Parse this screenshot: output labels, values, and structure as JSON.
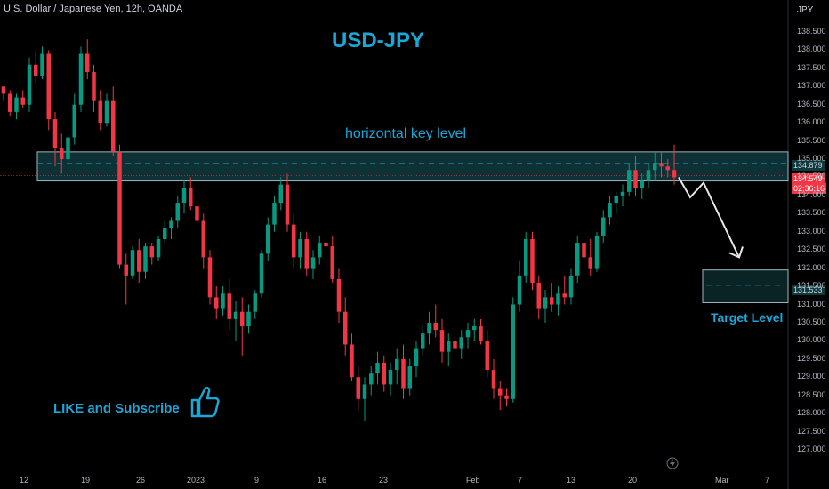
{
  "header": "U.S. Dollar / Japanese Yen, 12h, OANDA",
  "annotations": {
    "title": "USD-JPY",
    "key_level_label": "horizontal key level",
    "target_label": "Target Level",
    "cta": "LIKE and Subscribe"
  },
  "axis": {
    "unit": "JPY",
    "price_ticks": [
      "138.500",
      "138.000",
      "137.500",
      "137.000",
      "136.500",
      "136.000",
      "135.500",
      "135.000",
      "134.500",
      "134.000",
      "133.500",
      "133.000",
      "132.500",
      "132.000",
      "131.500",
      "131.000",
      "130.500",
      "130.000",
      "129.500",
      "129.000",
      "128.500",
      "128.000",
      "127.500",
      "127.000"
    ],
    "date_ticks": [
      "12",
      "19",
      "26",
      "2023",
      "9",
      "16",
      "23",
      "Feb",
      "7",
      "13",
      "20",
      "Mar",
      "7"
    ]
  },
  "tags": {
    "key_level": "134.879",
    "last_price": "134.549",
    "countdown": "02:36:16",
    "target": "131.533"
  },
  "colors": {
    "up": "#089981",
    "down": "#f23645",
    "accent": "#1ba7d8",
    "zone": "#0f3a3d"
  },
  "chart_data": {
    "type": "candlestick",
    "title": "USD-JPY",
    "symbol": "U.S. Dollar / Japanese Yen, 12h, OANDA",
    "ylim": [
      126.8,
      138.9
    ],
    "key_zone": [
      134.4,
      135.2
    ],
    "key_level": 134.879,
    "target_zone": [
      131.05,
      131.95
    ],
    "target_level": 131.533,
    "last_price": 134.549,
    "projection": [
      [
        0,
        134.5
      ],
      [
        1,
        133.95
      ],
      [
        2,
        134.35
      ],
      [
        3,
        132.3
      ]
    ],
    "candles": [
      [
        137.0,
        137.0,
        136.6,
        136.8
      ],
      [
        136.8,
        136.9,
        136.2,
        136.3
      ],
      [
        136.3,
        136.8,
        136.1,
        136.7
      ],
      [
        136.7,
        136.9,
        136.4,
        136.5
      ],
      [
        136.5,
        137.8,
        136.3,
        137.6
      ],
      [
        137.6,
        138.0,
        137.1,
        137.3
      ],
      [
        137.3,
        138.1,
        137.2,
        137.9
      ],
      [
        137.9,
        138.0,
        135.8,
        136.1
      ],
      [
        136.1,
        136.3,
        134.8,
        135.3
      ],
      [
        135.3,
        135.7,
        134.6,
        135.0
      ],
      [
        135.0,
        135.9,
        134.5,
        135.6
      ],
      [
        135.6,
        136.8,
        135.4,
        136.5
      ],
      [
        136.5,
        138.1,
        136.3,
        137.9
      ],
      [
        137.9,
        138.3,
        137.2,
        137.4
      ],
      [
        137.4,
        137.6,
        136.3,
        136.6
      ],
      [
        136.6,
        136.9,
        135.8,
        136.0
      ],
      [
        136.0,
        136.8,
        135.9,
        136.6
      ],
      [
        136.6,
        137.0,
        135.1,
        135.2
      ],
      [
        135.2,
        135.4,
        132.0,
        132.1
      ],
      [
        132.1,
        132.4,
        131.0,
        131.8
      ],
      [
        131.8,
        132.6,
        131.7,
        132.5
      ],
      [
        132.5,
        132.8,
        131.6,
        131.9
      ],
      [
        131.9,
        132.7,
        131.7,
        132.6
      ],
      [
        132.6,
        132.7,
        132.1,
        132.3
      ],
      [
        132.3,
        132.9,
        132.2,
        132.8
      ],
      [
        132.8,
        133.3,
        132.7,
        133.1
      ],
      [
        133.1,
        133.4,
        132.8,
        133.3
      ],
      [
        133.3,
        134.0,
        133.1,
        133.8
      ],
      [
        133.8,
        134.4,
        133.5,
        134.2
      ],
      [
        134.2,
        134.5,
        133.6,
        133.7
      ],
      [
        133.7,
        134.0,
        133.1,
        133.3
      ],
      [
        133.3,
        133.5,
        132.0,
        132.3
      ],
      [
        132.3,
        132.5,
        131.0,
        131.2
      ],
      [
        131.2,
        131.5,
        130.6,
        130.9
      ],
      [
        130.9,
        131.5,
        130.7,
        131.3
      ],
      [
        131.3,
        131.7,
        130.3,
        130.6
      ],
      [
        130.6,
        131.1,
        130.0,
        130.8
      ],
      [
        130.8,
        131.2,
        129.6,
        130.4
      ],
      [
        130.4,
        131.0,
        130.2,
        130.8
      ],
      [
        130.8,
        131.4,
        130.6,
        131.3
      ],
      [
        131.3,
        132.5,
        131.2,
        132.4
      ],
      [
        132.4,
        133.4,
        132.2,
        133.2
      ],
      [
        133.2,
        134.0,
        133.0,
        133.8
      ],
      [
        133.8,
        134.5,
        133.6,
        134.3
      ],
      [
        134.3,
        134.6,
        133.0,
        133.2
      ],
      [
        133.2,
        133.5,
        132.0,
        132.3
      ],
      [
        132.3,
        133.0,
        132.0,
        132.8
      ],
      [
        132.8,
        133.0,
        131.8,
        132.0
      ],
      [
        132.0,
        132.5,
        131.7,
        132.3
      ],
      [
        132.3,
        132.9,
        132.1,
        132.7
      ],
      [
        132.7,
        133.0,
        132.3,
        132.6
      ],
      [
        132.6,
        132.9,
        131.6,
        131.7
      ],
      [
        131.7,
        132.0,
        130.5,
        130.8
      ],
      [
        130.8,
        131.2,
        129.6,
        129.9
      ],
      [
        129.9,
        130.2,
        128.9,
        129.0
      ],
      [
        129.0,
        129.3,
        128.1,
        128.4
      ],
      [
        128.4,
        129.0,
        127.8,
        128.8
      ],
      [
        128.8,
        129.3,
        128.5,
        129.1
      ],
      [
        129.1,
        129.7,
        128.8,
        129.4
      ],
      [
        129.4,
        129.6,
        128.6,
        128.8
      ],
      [
        128.8,
        129.4,
        128.5,
        129.2
      ],
      [
        129.2,
        129.8,
        128.8,
        129.5
      ],
      [
        129.5,
        129.9,
        128.4,
        128.7
      ],
      [
        128.7,
        129.5,
        128.5,
        129.3
      ],
      [
        129.3,
        130.0,
        129.0,
        129.8
      ],
      [
        129.8,
        130.4,
        129.6,
        130.2
      ],
      [
        130.2,
        130.8,
        129.9,
        130.5
      ],
      [
        130.5,
        131.0,
        130.1,
        130.3
      ],
      [
        130.3,
        130.6,
        129.4,
        129.7
      ],
      [
        129.7,
        130.2,
        129.3,
        130.0
      ],
      [
        130.0,
        130.4,
        129.6,
        129.8
      ],
      [
        129.8,
        130.3,
        129.5,
        130.1
      ],
      [
        130.1,
        130.5,
        129.8,
        130.3
      ],
      [
        130.3,
        130.6,
        130.0,
        130.4
      ],
      [
        130.4,
        130.6,
        129.9,
        130.0
      ],
      [
        130.0,
        130.3,
        129.0,
        129.2
      ],
      [
        129.2,
        129.5,
        128.4,
        128.7
      ],
      [
        128.7,
        128.9,
        128.1,
        128.5
      ],
      [
        128.5,
        128.7,
        128.2,
        128.4
      ],
      [
        128.4,
        131.2,
        128.3,
        131.0
      ],
      [
        131.0,
        132.2,
        130.8,
        131.8
      ],
      [
        131.8,
        133.0,
        131.6,
        132.8
      ],
      [
        132.8,
        133.0,
        131.4,
        131.6
      ],
      [
        131.6,
        131.8,
        130.6,
        130.9
      ],
      [
        130.9,
        131.4,
        130.5,
        131.2
      ],
      [
        131.2,
        131.6,
        130.8,
        131.0
      ],
      [
        131.0,
        131.5,
        130.7,
        131.3
      ],
      [
        131.3,
        131.8,
        131.0,
        131.2
      ],
      [
        131.2,
        132.0,
        131.0,
        131.8
      ],
      [
        131.8,
        132.9,
        131.6,
        132.7
      ],
      [
        132.7,
        133.1,
        132.0,
        132.3
      ],
      [
        132.3,
        132.8,
        131.8,
        132.0
      ],
      [
        132.0,
        133.0,
        131.9,
        132.9
      ],
      [
        132.9,
        133.6,
        132.7,
        133.4
      ],
      [
        133.4,
        134.0,
        133.2,
        133.8
      ],
      [
        133.8,
        134.1,
        133.5,
        134.0
      ],
      [
        134.0,
        134.3,
        133.7,
        134.1
      ],
      [
        134.1,
        134.9,
        134.0,
        134.7
      ],
      [
        134.7,
        135.1,
        134.0,
        134.2
      ],
      [
        134.2,
        134.6,
        133.9,
        134.4
      ],
      [
        134.4,
        134.9,
        134.2,
        134.7
      ],
      [
        134.7,
        135.2,
        134.4,
        134.9
      ],
      [
        134.9,
        135.2,
        134.5,
        134.8
      ],
      [
        134.8,
        135.0,
        134.5,
        134.7
      ],
      [
        134.7,
        135.4,
        134.3,
        134.5
      ]
    ]
  }
}
